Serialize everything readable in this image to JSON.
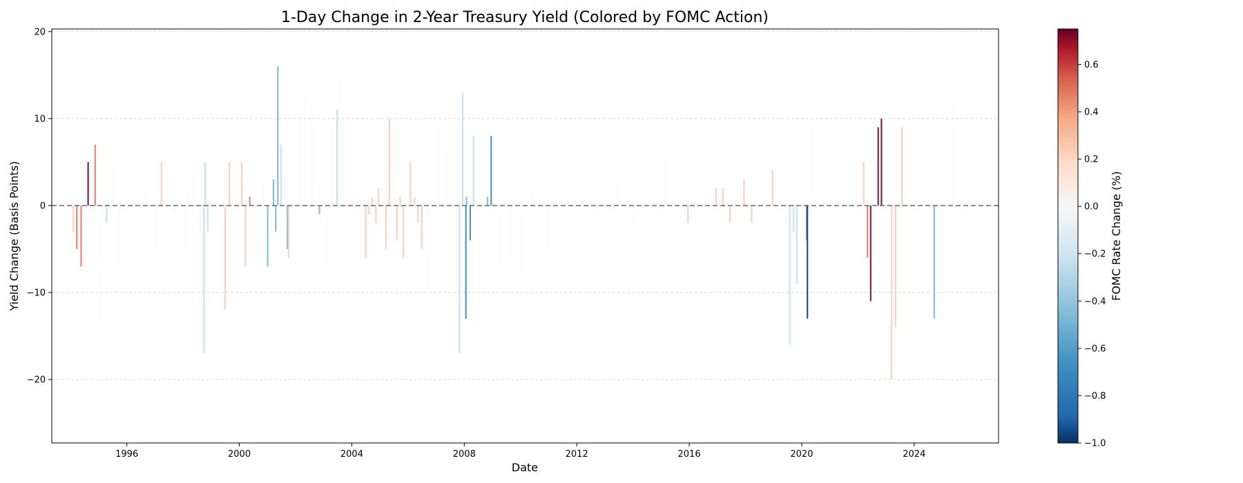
{
  "chart_data": {
    "type": "bar",
    "title": "1-Day Change in 2-Year Treasury Yield (Colored by FOMC Action)",
    "xlabel": "Date",
    "ylabel": "Yield Change (Basis Points)",
    "xlim": [
      "1993-05-01",
      "2027-01-01"
    ],
    "ylim": [
      -27.3,
      20.3
    ],
    "x_ticks": [
      "1996",
      "2000",
      "2004",
      "2008",
      "2012",
      "2016",
      "2020",
      "2024"
    ],
    "y_ticks": [
      -20,
      -10,
      0,
      10,
      20
    ],
    "grid": "horizontal dashed",
    "reference_line": 0,
    "colorbar": {
      "label": "FOMC Rate Change (%)",
      "colormap": "RdBu_r",
      "range": [
        -1.0,
        0.75
      ],
      "ticks": [
        -1.0,
        -0.8,
        -0.6,
        -0.4,
        -0.2,
        0.0,
        0.2,
        0.4,
        0.6
      ],
      "tick_labels": [
        "−1.0",
        "−0.8",
        "−0.6",
        "−0.4",
        "−0.2",
        "0.0",
        "0.2",
        "0.4",
        "0.6"
      ]
    },
    "series": [
      {
        "points": [
          {
            "date": "1994-02-04",
            "value": -3,
            "rate_change": 0.25
          },
          {
            "date": "1994-03-22",
            "value": -5,
            "rate_change": 0.5
          },
          {
            "date": "1994-05-17",
            "value": -7,
            "rate_change": 0.5
          },
          {
            "date": "1994-08-16",
            "value": 5,
            "rate_change": 0.75
          },
          {
            "date": "1994-11-15",
            "value": 7,
            "rate_change": 0.5
          },
          {
            "date": "1995-02-01",
            "value": -14,
            "rate_change": 0
          },
          {
            "date": "1995-04-15",
            "value": -2,
            "rate_change": -0.25
          },
          {
            "date": "1995-07-06",
            "value": 4,
            "rate_change": 0
          },
          {
            "date": "1995-09-20",
            "value": -7,
            "rate_change": 0
          },
          {
            "date": "1995-11-10",
            "value": -3,
            "rate_change": 0
          },
          {
            "date": "1996-03-01",
            "value": 9,
            "rate_change": 0
          },
          {
            "date": "1996-09-01",
            "value": 2,
            "rate_change": 0
          },
          {
            "date": "1996-11-01",
            "value": -8,
            "rate_change": 0
          },
          {
            "date": "1997-01-15",
            "value": -5,
            "rate_change": 0
          },
          {
            "date": "1997-03-25",
            "value": 5,
            "rate_change": 0.25
          },
          {
            "date": "1997-09-01",
            "value": -9,
            "rate_change": 0
          },
          {
            "date": "1997-11-01",
            "value": 3,
            "rate_change": 0
          },
          {
            "date": "1998-01-15",
            "value": -5,
            "rate_change": 0
          },
          {
            "date": "1998-03-01",
            "value": 2,
            "rate_change": 0
          },
          {
            "date": "1998-05-15",
            "value": 4,
            "rate_change": 0
          },
          {
            "date": "1998-08-01",
            "value": -3,
            "rate_change": 0
          },
          {
            "date": "1998-09-29",
            "value": -17,
            "rate_change": -0.25
          },
          {
            "date": "1998-10-15",
            "value": 5,
            "rate_change": -0.25
          },
          {
            "date": "1998-11-17",
            "value": -3,
            "rate_change": -0.25
          },
          {
            "date": "1999-01-01",
            "value": 14,
            "rate_change": 0
          },
          {
            "date": "1999-06-30",
            "value": -12,
            "rate_change": 0.25
          },
          {
            "date": "1999-08-24",
            "value": 5,
            "rate_change": 0.25
          },
          {
            "date": "1999-11-16",
            "value": -7,
            "rate_change": 0
          },
          {
            "date": "2000-02-02",
            "value": 5,
            "rate_change": 0.25
          },
          {
            "date": "2000-03-21",
            "value": -7,
            "rate_change": 0.25
          },
          {
            "date": "2000-05-16",
            "value": 1,
            "rate_change": 0.5
          },
          {
            "date": "2000-09-01",
            "value": -7,
            "rate_change": 0
          },
          {
            "date": "2000-11-01",
            "value": 3,
            "rate_change": 0
          },
          {
            "date": "2001-01-03",
            "value": -7,
            "rate_change": -0.5
          },
          {
            "date": "2001-03-20",
            "value": 3,
            "rate_change": -0.5
          },
          {
            "date": "2001-04-18",
            "value": -3,
            "rate_change": -0.5
          },
          {
            "date": "2001-05-15",
            "value": 16,
            "rate_change": -0.5
          },
          {
            "date": "2001-06-27",
            "value": 7,
            "rate_change": -0.25
          },
          {
            "date": "2001-09-17",
            "value": -5,
            "rate_change": -0.5
          },
          {
            "date": "2001-10-02",
            "value": -6,
            "rate_change": 0.25
          },
          {
            "date": "2002-03-01",
            "value": 10,
            "rate_change": 0
          },
          {
            "date": "2002-05-01",
            "value": 18,
            "rate_change": 0
          },
          {
            "date": "2002-08-01",
            "value": 12,
            "rate_change": 0
          },
          {
            "date": "2002-11-06",
            "value": -1,
            "rate_change": -0.5
          },
          {
            "date": "2003-03-01",
            "value": -7,
            "rate_change": 0
          },
          {
            "date": "2003-06-25",
            "value": 11,
            "rate_change": -0.25
          },
          {
            "date": "2003-08-01",
            "value": 15,
            "rate_change": 0
          },
          {
            "date": "2003-10-15",
            "value": 8,
            "rate_change": 0
          },
          {
            "date": "2004-03-01",
            "value": 2,
            "rate_change": 0
          },
          {
            "date": "2004-06-30",
            "value": -6,
            "rate_change": 0.25
          },
          {
            "date": "2004-08-10",
            "value": -1,
            "rate_change": 0.25
          },
          {
            "date": "2004-09-21",
            "value": 1,
            "rate_change": 0.25
          },
          {
            "date": "2004-11-10",
            "value": -2,
            "rate_change": 0.25
          },
          {
            "date": "2004-12-14",
            "value": 2,
            "rate_change": 0.25
          },
          {
            "date": "2005-03-22",
            "value": -5,
            "rate_change": 0.25
          },
          {
            "date": "2005-05-03",
            "value": 10,
            "rate_change": 0.25
          },
          {
            "date": "2005-08-09",
            "value": -4,
            "rate_change": 0.25
          },
          {
            "date": "2005-09-20",
            "value": 1,
            "rate_change": 0.25
          },
          {
            "date": "2005-11-01",
            "value": -6,
            "rate_change": 0.25
          },
          {
            "date": "2006-01-31",
            "value": 5,
            "rate_change": 0.25
          },
          {
            "date": "2006-03-28",
            "value": 1,
            "rate_change": 0.25
          },
          {
            "date": "2006-05-10",
            "value": -2,
            "rate_change": 0.25
          },
          {
            "date": "2006-06-29",
            "value": -5,
            "rate_change": 0.25
          },
          {
            "date": "2006-10-01",
            "value": -10,
            "rate_change": 0
          },
          {
            "date": "2007-02-01",
            "value": 9,
            "rate_change": 0
          },
          {
            "date": "2007-06-01",
            "value": 7,
            "rate_change": 0
          },
          {
            "date": "2007-09-18",
            "value": -9,
            "rate_change": 0
          },
          {
            "date": "2007-10-31",
            "value": -17,
            "rate_change": -0.25
          },
          {
            "date": "2007-12-11",
            "value": 13,
            "rate_change": -0.25
          },
          {
            "date": "2008-01-22",
            "value": -13,
            "rate_change": -0.75
          },
          {
            "date": "2008-01-30",
            "value": 1,
            "rate_change": -0.5
          },
          {
            "date": "2008-03-18",
            "value": -4,
            "rate_change": -0.75
          },
          {
            "date": "2008-04-30",
            "value": 8,
            "rate_change": -0.25
          },
          {
            "date": "2008-07-01",
            "value": -14,
            "rate_change": 0
          },
          {
            "date": "2008-10-08",
            "value": -25,
            "rate_change": 0
          },
          {
            "date": "2008-10-29",
            "value": 1,
            "rate_change": -0.5
          },
          {
            "date": "2008-12-16",
            "value": 8,
            "rate_change": -0.75
          },
          {
            "date": "2009-05-01",
            "value": -7,
            "rate_change": 0
          },
          {
            "date": "2009-09-01",
            "value": -6,
            "rate_change": 0
          },
          {
            "date": "2010-01-01",
            "value": -8,
            "rate_change": 0
          },
          {
            "date": "2010-06-01",
            "value": 2,
            "rate_change": 0
          },
          {
            "date": "2011-01-01",
            "value": -5,
            "rate_change": 0
          },
          {
            "date": "2012-01-01",
            "value": 1,
            "rate_change": 0
          },
          {
            "date": "2012-03-01",
            "value": 5,
            "rate_change": 0
          },
          {
            "date": "2013-06-01",
            "value": 3,
            "rate_change": 0
          },
          {
            "date": "2014-01-01",
            "value": -2,
            "rate_change": 0
          },
          {
            "date": "2015-03-01",
            "value": 6,
            "rate_change": 0
          },
          {
            "date": "2015-12-16",
            "value": -2,
            "rate_change": 0.25
          },
          {
            "date": "2016-12-14",
            "value": 2,
            "rate_change": 0.25
          },
          {
            "date": "2017-03-15",
            "value": 2,
            "rate_change": 0.25
          },
          {
            "date": "2017-06-14",
            "value": -2,
            "rate_change": 0.25
          },
          {
            "date": "2017-12-13",
            "value": 3,
            "rate_change": 0.25
          },
          {
            "date": "2018-03-21",
            "value": -2,
            "rate_change": 0.25
          },
          {
            "date": "2018-12-19",
            "value": 4,
            "rate_change": 0.25
          },
          {
            "date": "2019-07-31",
            "value": -16,
            "rate_change": -0.25
          },
          {
            "date": "2019-09-18",
            "value": -3,
            "rate_change": -0.25
          },
          {
            "date": "2019-10-30",
            "value": -9,
            "rate_change": -0.25
          },
          {
            "date": "2020-03-03",
            "value": -4,
            "rate_change": -0.5
          },
          {
            "date": "2020-03-15",
            "value": -13,
            "rate_change": -1.0
          },
          {
            "date": "2020-06-01",
            "value": 10,
            "rate_change": 0
          },
          {
            "date": "2022-03-16",
            "value": 5,
            "rate_change": 0.25
          },
          {
            "date": "2022-05-04",
            "value": -6,
            "rate_change": 0.5
          },
          {
            "date": "2022-06-15",
            "value": -11,
            "rate_change": 0.75
          },
          {
            "date": "2022-09-21",
            "value": 9,
            "rate_change": 0.75
          },
          {
            "date": "2022-11-02",
            "value": 10,
            "rate_change": 0.75
          },
          {
            "date": "2023-03-15",
            "value": -20,
            "rate_change": 0.25
          },
          {
            "date": "2023-05-03",
            "value": -14,
            "rate_change": 0.25
          },
          {
            "date": "2023-07-26",
            "value": 9,
            "rate_change": 0.25
          },
          {
            "date": "2024-09-18",
            "value": -13,
            "rate_change": -0.5
          },
          {
            "date": "2025-06-01",
            "value": 12,
            "rate_change": 0
          }
        ]
      }
    ]
  }
}
